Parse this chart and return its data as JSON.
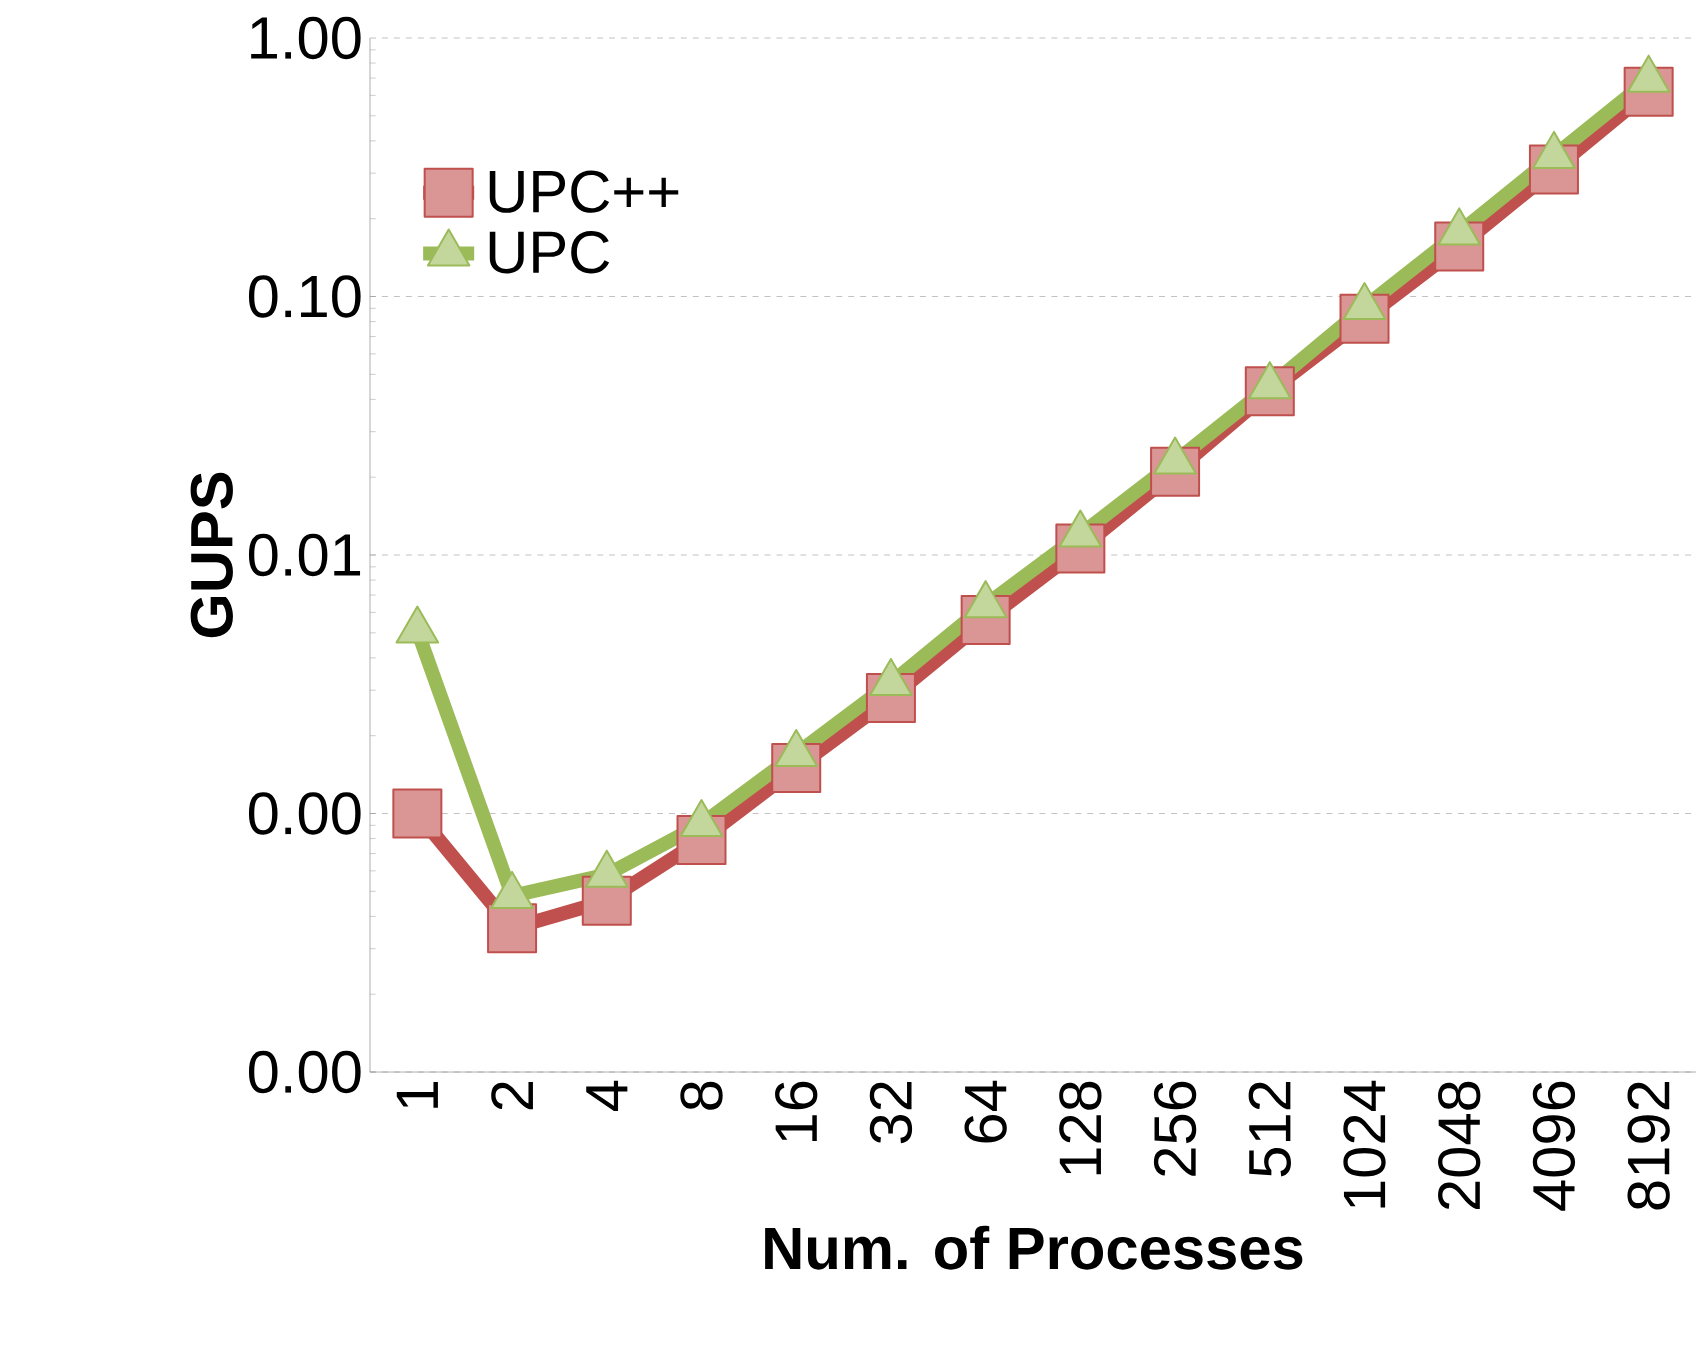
{
  "chart_data": {
    "type": "line",
    "xlabel": "Num. of Processes",
    "ylabel": "GUPS",
    "categories": [
      "1",
      "2",
      "4",
      "8",
      "16",
      "32",
      "64",
      "128",
      "256",
      "512",
      "1024",
      "2048",
      "4096",
      "8192"
    ],
    "series": [
      {
        "name": "UPC++",
        "color": "#c0504d",
        "marker": "square",
        "values": [
          0.001,
          0.00036,
          0.00046,
          0.00079,
          0.0015,
          0.0028,
          0.0056,
          0.0106,
          0.021,
          0.043,
          0.082,
          0.156,
          0.31,
          0.62
        ]
      },
      {
        "name": "UPC",
        "color": "#9bbb59",
        "marker": "triangle",
        "values": [
          0.0051,
          0.00048,
          0.00058,
          0.00091,
          0.0017,
          0.0032,
          0.0064,
          0.012,
          0.023,
          0.045,
          0.091,
          0.177,
          0.35,
          0.69
        ]
      }
    ],
    "log": "y",
    "ylim": [
      0.0001,
      1
    ],
    "yticks": [
      {
        "value": 0.0001,
        "label": "0.00"
      },
      {
        "value": 0.001,
        "label": "0.00"
      },
      {
        "value": 0.01,
        "label": "0.01"
      },
      {
        "value": 0.1,
        "label": "0.10"
      },
      {
        "value": 1,
        "label": "1.00"
      }
    ],
    "grid": "y",
    "legend": "top left",
    "line_style": "solid"
  }
}
